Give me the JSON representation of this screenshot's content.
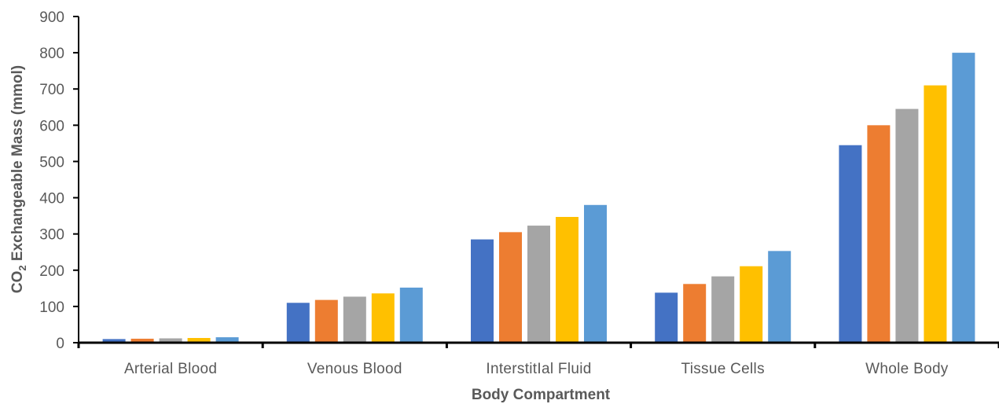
{
  "chart_data": {
    "type": "bar",
    "categories": [
      "Arterial Blood",
      "Venous Blood",
      "InterstitIal Fluid",
      "Tissue Cells",
      "Whole Body"
    ],
    "series": [
      {
        "color": "#4472c4",
        "values": [
          10,
          110,
          285,
          138,
          545
        ]
      },
      {
        "color": "#ed7d31",
        "values": [
          11,
          118,
          305,
          162,
          600
        ]
      },
      {
        "color": "#a5a5a5",
        "values": [
          12,
          127,
          323,
          183,
          645
        ]
      },
      {
        "color": "#ffc000",
        "values": [
          13,
          136,
          347,
          211,
          710
        ]
      },
      {
        "color": "#5b9bd5",
        "values": [
          15,
          152,
          380,
          253,
          800
        ]
      }
    ],
    "xlabel": "Body Compartment",
    "ylabel": {
      "prefix": "CO",
      "subscript": "2",
      "suffix": " Exchangeable Mass (mmol)"
    },
    "ylim": [
      0,
      900
    ],
    "yticks": [
      "0",
      "100",
      "200",
      "300",
      "400",
      "500",
      "600",
      "700",
      "800",
      "900"
    ],
    "grid": false,
    "legend": "none"
  }
}
